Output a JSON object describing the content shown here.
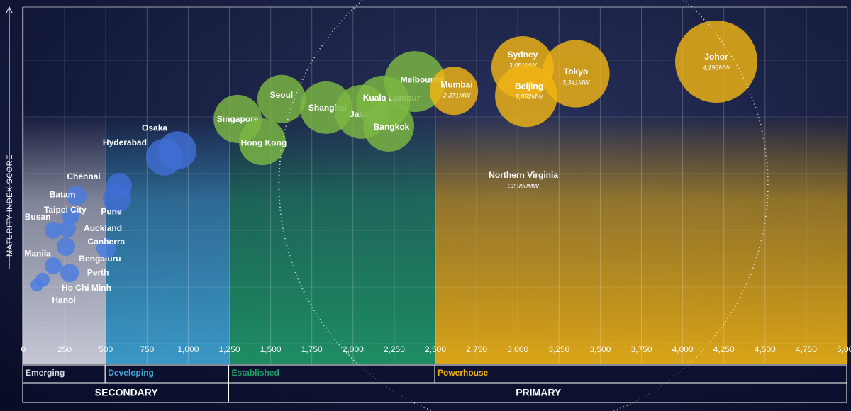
{
  "chart_data": {
    "type": "bubble",
    "y_axis_label": "MATURITY INDEX SCORE",
    "xlim": [
      0,
      5000
    ],
    "ylim": [
      0,
      100
    ],
    "xticks": [
      0,
      250,
      500,
      750,
      {
        "value": 1000,
        "label": "1,000"
      },
      {
        "value": 1250,
        "label": "1,250"
      },
      {
        "value": 1500,
        "label": "1,500"
      },
      {
        "value": 1750,
        "label": "1,750"
      },
      {
        "value": 2000,
        "label": "2,000"
      },
      {
        "value": 2250,
        "label": "2,250"
      },
      {
        "value": 2500,
        "label": "2,500"
      },
      {
        "value": 2750,
        "label": "2,750"
      },
      {
        "value": 3000,
        "label": "3,000"
      },
      {
        "value": 3250,
        "label": "3,250"
      },
      {
        "value": 3500,
        "label": "3,500"
      },
      {
        "value": 3750,
        "label": "3,750"
      },
      {
        "value": 4000,
        "label": "4,000"
      },
      {
        "value": 4250,
        "label": "4,250"
      },
      {
        "value": 4500,
        "label": "4,500"
      },
      {
        "value": 4750,
        "label": "4,750"
      },
      {
        "value": 5000,
        "label": "5,000"
      }
    ],
    "grid": true,
    "tiers": [
      {
        "name": "Emerging",
        "range": [
          0,
          500
        ],
        "color": "#d9dbe6"
      },
      {
        "name": "Developing",
        "range": [
          500,
          1250
        ],
        "color": "#3fa6d6"
      },
      {
        "name": "Established",
        "range": [
          1250,
          2500
        ],
        "color": "#1f9a68"
      },
      {
        "name": "Powerhouse",
        "range": [
          2500,
          5000
        ],
        "color": "#f0b414"
      }
    ],
    "groups": [
      {
        "name": "SECONDARY",
        "range": [
          0,
          1250
        ]
      },
      {
        "name": "PRIMARY",
        "range": [
          1250,
          5000
        ]
      }
    ],
    "points": [
      {
        "name": "Hanoi",
        "x": 82,
        "y": 22,
        "size": 487,
        "color": "#4a7de0"
      },
      {
        "name": "Ho Chi Minh",
        "x": 116,
        "y": 23.5,
        "size": 550,
        "color": "#4a7de0"
      },
      {
        "name": "Manila",
        "x": 181,
        "y": 27.4,
        "size": 679,
        "color": "#4a7de0"
      },
      {
        "name": "Perth",
        "x": 280,
        "y": 25.4,
        "size": 745,
        "color": "#4a7de0"
      },
      {
        "name": "Bengaluru",
        "x": 258,
        "y": 32.8,
        "size": 745,
        "color": "#4a7de0"
      },
      {
        "name": "Canberra",
        "x": 503,
        "y": 32.4,
        "size": 811,
        "color": "#4a7de0"
      },
      {
        "name": "Auckland",
        "x": 267,
        "y": 37.8,
        "size": 679,
        "color": "#4a7de0"
      },
      {
        "name": "Busan",
        "x": 181,
        "y": 37.4,
        "size": 679,
        "color": "#4a7de0"
      },
      {
        "name": "Taipei City",
        "x": 288,
        "y": 41.4,
        "size": 679,
        "color": "#4a7de0"
      },
      {
        "name": "Batam",
        "x": 323,
        "y": 47.1,
        "size": 811,
        "color": "#4a7de0"
      },
      {
        "name": "Pune",
        "x": 568,
        "y": 46.3,
        "size": 1225,
        "color": "#3f6fd6"
      },
      {
        "name": "Chennai",
        "x": 581,
        "y": 49.9,
        "size": 1084,
        "color": "#3f6fd6"
      },
      {
        "name": "Hyderabad",
        "x": 856,
        "y": 57.9,
        "size": 1659,
        "color": "#3f6fd6"
      },
      {
        "name": "Osaka",
        "x": 934,
        "y": 59.8,
        "size": 1735,
        "color": "#3f6fd6"
      },
      {
        "name": "Singapore",
        "x": 1300,
        "y": 68.6,
        "size": 2265,
        "color": "#7cb843"
      },
      {
        "name": "Hong Kong",
        "x": 1450,
        "y": 62.2,
        "size": 2186,
        "color": "#7cb843"
      },
      {
        "name": "Seoul",
        "x": 1566,
        "y": 74.2,
        "size": 2265,
        "color": "#7cb843"
      },
      {
        "name": "Shanghai",
        "x": 1837,
        "y": 71.8,
        "size": 2496,
        "color": "#7cb843"
      },
      {
        "name": "Jakarta",
        "x": 2053,
        "y": 70.6,
        "size": 2574,
        "color": "#7cb843"
      },
      {
        "name": "Kuala Lumpur",
        "x": 2182,
        "y": 73.2,
        "size": 2574,
        "color": "#7cb843"
      },
      {
        "name": "Bangkok",
        "x": 2216,
        "y": 66.6,
        "size": 2418,
        "color": "#7cb843"
      },
      {
        "name": "Melbourne",
        "x": 2375,
        "y": 79.1,
        "size": 2969,
        "color": "#7cb843"
      },
      {
        "name": "Mumbai",
        "x": 2612,
        "y": 76.5,
        "size": 2271,
        "size_label": "2,271MW",
        "color": "#f0b414"
      },
      {
        "name": "Sydney",
        "x": 3029,
        "y": 83.1,
        "size": 3051,
        "size_label": "3,051MW",
        "color": "#f0b414"
      },
      {
        "name": "Beijing",
        "x": 3051,
        "y": 75.1,
        "size": 3052,
        "size_label": "3,052MW",
        "color": "#f0b414"
      },
      {
        "name": "Tokyo",
        "x": 3352,
        "y": 81.3,
        "size": 3341,
        "size_label": "3,341MW",
        "color": "#f0b414"
      },
      {
        "name": "Johor",
        "x": 4204,
        "y": 84.7,
        "size": 4198,
        "size_label": "4,198MW",
        "color": "#f0b414"
      },
      {
        "name": "Northern Virginia",
        "x": 3034,
        "y": 50.3,
        "size": 32960,
        "size_label": "32,960MW",
        "color": "#ffffff"
      }
    ]
  }
}
